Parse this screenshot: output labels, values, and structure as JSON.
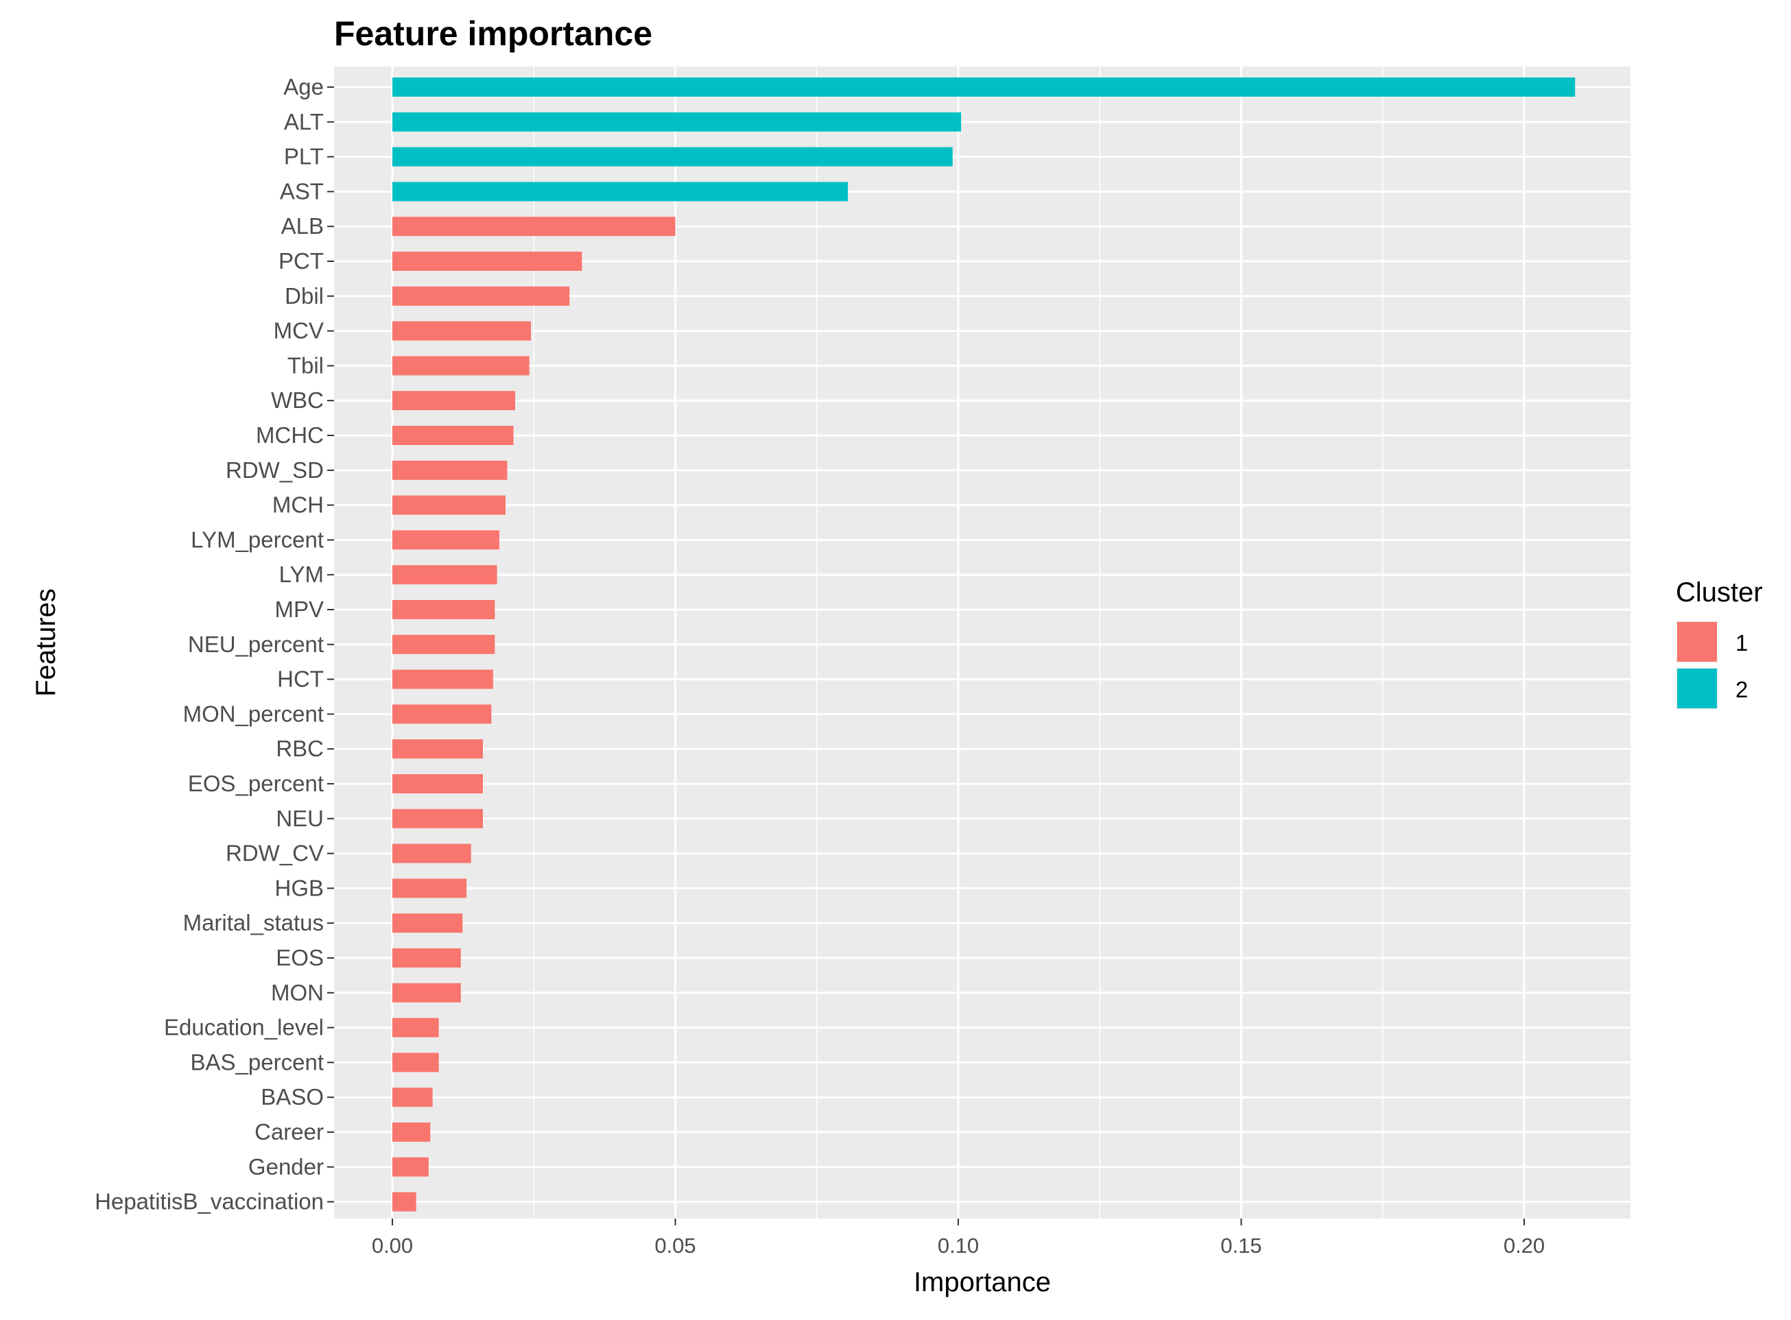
{
  "chart_data": {
    "type": "bar",
    "orientation": "horizontal",
    "title": "Feature importance",
    "xlabel": "Importance",
    "ylabel": "Features",
    "xlim": [
      0,
      0.22
    ],
    "xticks": [
      "0.00",
      "0.05",
      "0.10",
      "0.15",
      "0.20"
    ],
    "grid": true,
    "background": "#ebebeb",
    "legend": {
      "title": "Cluster",
      "position": "right",
      "entries": [
        {
          "label": "1",
          "color": "#f8766d"
        },
        {
          "label": "2",
          "color": "#00bfc4"
        }
      ]
    },
    "categories": [
      "Age",
      "ALT",
      "PLT",
      "AST",
      "ALB",
      "PCT",
      "Dbil",
      "MCV",
      "Tbil",
      "WBC",
      "MCHC",
      "RDW_SD",
      "MCH",
      "LYM_percent",
      "LYM",
      "MPV",
      "NEU_percent",
      "HCT",
      "MON_percent",
      "RBC",
      "EOS_percent",
      "NEU",
      "RDW_CV",
      "HGB",
      "Marital_status",
      "EOS",
      "MON",
      "Education_level",
      "BAS_percent",
      "BASO",
      "Career",
      "Gender",
      "HepatitisB_vaccination"
    ],
    "values": [
      0.209,
      0.1005,
      0.099,
      0.0805,
      0.05,
      0.0335,
      0.0313,
      0.0245,
      0.0242,
      0.0217,
      0.0214,
      0.0203,
      0.02,
      0.0189,
      0.0185,
      0.0181,
      0.0181,
      0.0178,
      0.0175,
      0.016,
      0.016,
      0.016,
      0.0139,
      0.0131,
      0.0124,
      0.0121,
      0.0121,
      0.0082,
      0.0082,
      0.0071,
      0.0067,
      0.0064,
      0.0042
    ],
    "clusters": [
      "2",
      "2",
      "2",
      "2",
      "1",
      "1",
      "1",
      "1",
      "1",
      "1",
      "1",
      "1",
      "1",
      "1",
      "1",
      "1",
      "1",
      "1",
      "1",
      "1",
      "1",
      "1",
      "1",
      "1",
      "1",
      "1",
      "1",
      "1",
      "1",
      "1",
      "1",
      "1",
      "1"
    ]
  }
}
